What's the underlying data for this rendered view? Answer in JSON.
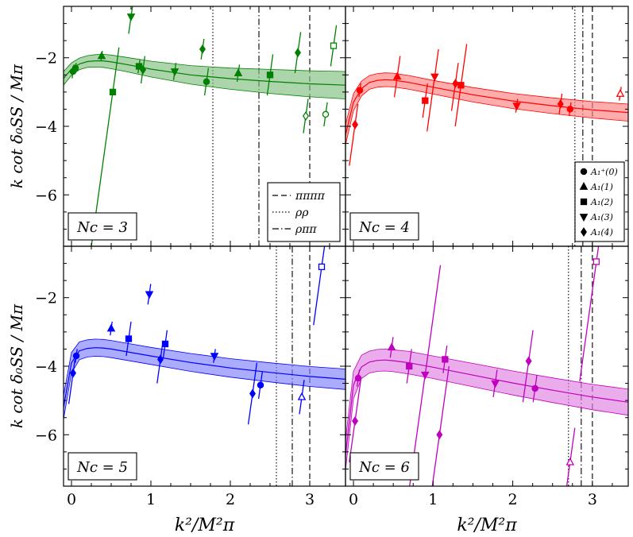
{
  "chart_data": {
    "type": "scatter",
    "figure": "4-panel grid, shared x axis and shared y axis",
    "xlabel": "k²/M²π",
    "ylabel": "k cot δ₀SS / Mπ",
    "xlim": [
      -0.1,
      3.45
    ],
    "ylim": [
      -7.5,
      -0.5
    ],
    "xticks": [
      "0",
      "1",
      "2",
      "3"
    ],
    "yticks": [
      "−2",
      "−4",
      "−6"
    ],
    "legend_lines": [
      {
        "style": "dashed",
        "label": "ππππ"
      },
      {
        "style": "dotted",
        "label": "ρρ"
      },
      {
        "style": "dashdot",
        "label": "ρππ"
      }
    ],
    "legend_markers": [
      {
        "marker": "circle",
        "label": "A₁⁺(0)"
      },
      {
        "marker": "triangle-up",
        "label": "A₁(1)"
      },
      {
        "marker": "square",
        "label": "A₁(2)"
      },
      {
        "marker": "triangle-down",
        "label": "A₁(3)"
      },
      {
        "marker": "diamond",
        "label": "A₁(4)"
      }
    ],
    "panels": [
      {
        "label": "Nc = 3",
        "color": "#008000",
        "band_color": "#7fbf7f",
        "fit": {
          "x": [
            -0.1,
            0,
            0.1,
            0.2,
            0.3,
            0.4,
            0.5,
            0.7,
            1,
            1.5,
            2,
            2.5,
            3,
            3.45
          ],
          "y": [
            -2.6,
            -2.33,
            -2.18,
            -2.11,
            -2.09,
            -2.09,
            -2.12,
            -2.2,
            -2.33,
            -2.5,
            -2.61,
            -2.69,
            -2.76,
            -2.8
          ],
          "err": [
            0.2,
            0.18,
            0.17,
            0.17,
            0.18,
            0.19,
            0.2,
            0.21,
            0.23,
            0.27,
            0.31,
            0.35,
            0.38,
            0.4
          ]
        },
        "thresholds": {
          "rhorho": 1.78,
          "rhopipi": 2.36,
          "pipipipi": 3.0
        },
        "points": [
          {
            "x": 0.02,
            "y": -2.4,
            "marker": "circle",
            "err": [
              0.2,
              0.2
            ],
            "open": false
          },
          {
            "x": 0.05,
            "y": -2.3,
            "marker": "circle",
            "err": [
              0.15,
              0.15
            ],
            "open": false
          },
          {
            "x": 0.38,
            "y": -1.95,
            "marker": "triangle-up",
            "err": [
              0.15,
              0.15
            ],
            "open": false
          },
          {
            "x": 0.52,
            "y": -3.0,
            "marker": "square",
            "err": [
              4.5,
              1.3
            ],
            "open": false
          },
          {
            "x": 0.75,
            "y": -0.8,
            "marker": "triangle-down",
            "err": [
              0.5,
              0.4
            ],
            "open": false
          },
          {
            "x": 0.85,
            "y": -2.25,
            "marker": "square",
            "err": [
              0.2,
              0.2
            ],
            "open": false
          },
          {
            "x": 0.9,
            "y": -2.35,
            "marker": "diamond",
            "err": [
              0.4,
              0.4
            ],
            "open": false
          },
          {
            "x": 1.3,
            "y": -2.4,
            "marker": "triangle-down",
            "err": [
              0.25,
              0.25
            ],
            "open": false
          },
          {
            "x": 1.65,
            "y": -1.75,
            "marker": "diamond",
            "err": [
              0.3,
              0.3
            ],
            "open": false
          },
          {
            "x": 1.7,
            "y": -2.7,
            "marker": "circle",
            "err": [
              0.4,
              0.4
            ],
            "open": false
          },
          {
            "x": 2.1,
            "y": -2.45,
            "marker": "triangle-up",
            "err": [
              0.25,
              0.25
            ],
            "open": false
          },
          {
            "x": 2.5,
            "y": -2.5,
            "marker": "square",
            "err": [
              0.6,
              0.6
            ],
            "open": false
          },
          {
            "x": 2.85,
            "y": -1.85,
            "marker": "diamond",
            "err": [
              0.6,
              0.6
            ],
            "open": false
          },
          {
            "x": 2.95,
            "y": -3.7,
            "marker": "diamond",
            "err": [
              0.5,
              0.5
            ],
            "open": true
          },
          {
            "x": 3.2,
            "y": -3.65,
            "marker": "circle",
            "err": [
              0.35,
              0.35
            ],
            "open": true
          },
          {
            "x": 3.3,
            "y": -1.65,
            "marker": "square",
            "err": [
              0.6,
              0.6
            ],
            "open": true
          }
        ]
      },
      {
        "label": "Nc = 4",
        "color": "#ff0000",
        "band_color": "#ff8080",
        "fit": {
          "x": [
            -0.1,
            0,
            0.1,
            0.2,
            0.3,
            0.4,
            0.5,
            0.7,
            1,
            1.5,
            2,
            2.5,
            3,
            3.45
          ],
          "y": [
            -4.25,
            -3.3,
            -2.9,
            -2.72,
            -2.66,
            -2.64,
            -2.65,
            -2.72,
            -2.86,
            -3.08,
            -3.26,
            -3.4,
            -3.52,
            -3.6
          ],
          "err": [
            0.3,
            0.25,
            0.22,
            0.2,
            0.2,
            0.2,
            0.2,
            0.2,
            0.2,
            0.21,
            0.22,
            0.23,
            0.24,
            0.25
          ]
        },
        "thresholds": {
          "rhorho": 2.78,
          "rhopipi": 2.88,
          "pipipipi": 3.0
        },
        "points": [
          {
            "x": 0.02,
            "y": -3.95,
            "marker": "diamond",
            "err": [
              1.2,
              0.6
            ],
            "open": false
          },
          {
            "x": 0.08,
            "y": -2.95,
            "marker": "circle",
            "err": [
              0.2,
              0.2
            ],
            "open": false
          },
          {
            "x": 0.55,
            "y": -2.55,
            "marker": "triangle-up",
            "err": [
              0.6,
              0.6
            ],
            "open": false
          },
          {
            "x": 0.9,
            "y": -3.25,
            "marker": "square",
            "err": [
              0.5,
              0.5
            ],
            "open": false
          },
          {
            "x": 1.02,
            "y": -2.55,
            "marker": "triangle-down",
            "err": [
              1.6,
              0.8
            ],
            "open": false
          },
          {
            "x": 1.28,
            "y": -2.75,
            "marker": "diamond",
            "err": [
              0.8,
              0.6
            ],
            "open": false
          },
          {
            "x": 1.35,
            "y": -2.8,
            "marker": "square",
            "err": [
              1.2,
              1.2
            ],
            "open": false
          },
          {
            "x": 2.05,
            "y": -3.4,
            "marker": "triangle-down",
            "err": [
              0.2,
              0.2
            ],
            "open": false
          },
          {
            "x": 2.6,
            "y": -3.35,
            "marker": "diamond",
            "err": [
              0.3,
              0.3
            ],
            "open": false
          },
          {
            "x": 2.72,
            "y": -3.5,
            "marker": "circle",
            "err": [
              0.2,
              0.2
            ],
            "open": false
          },
          {
            "x": 3.35,
            "y": -3.05,
            "marker": "triangle-up",
            "err": [
              0.2,
              0.2
            ],
            "open": true
          }
        ]
      },
      {
        "label": "Nc = 5",
        "color": "#0000ff",
        "band_color": "#8080ff",
        "fit": {
          "x": [
            -0.1,
            0,
            0.1,
            0.2,
            0.3,
            0.4,
            0.5,
            0.7,
            1,
            1.5,
            2,
            2.5,
            3,
            3.45
          ],
          "y": [
            -5.2,
            -3.9,
            -3.55,
            -3.48,
            -3.46,
            -3.47,
            -3.5,
            -3.58,
            -3.7,
            -3.89,
            -4.05,
            -4.18,
            -4.3,
            -4.38
          ],
          "err": [
            0.35,
            0.3,
            0.26,
            0.25,
            0.25,
            0.25,
            0.25,
            0.25,
            0.25,
            0.26,
            0.27,
            0.28,
            0.29,
            0.3
          ]
        },
        "thresholds": {
          "rhorho": 2.58,
          "rhopipi": 2.78,
          "pipipipi": 3.0
        },
        "points": [
          {
            "x": 0.02,
            "y": -4.2,
            "marker": "diamond",
            "err": [
              0.9,
              0.4
            ],
            "open": false
          },
          {
            "x": 0.06,
            "y": -3.7,
            "marker": "circle",
            "err": [
              0.2,
              0.2
            ],
            "open": false
          },
          {
            "x": 0.5,
            "y": -2.9,
            "marker": "triangle-up",
            "err": [
              0.2,
              0.2
            ],
            "open": false
          },
          {
            "x": 0.72,
            "y": -3.2,
            "marker": "square",
            "err": [
              0.5,
              0.5
            ],
            "open": false
          },
          {
            "x": 0.98,
            "y": -1.9,
            "marker": "triangle-down",
            "err": [
              0.3,
              0.3
            ],
            "open": false
          },
          {
            "x": 1.12,
            "y": -3.8,
            "marker": "diamond",
            "err": [
              0.7,
              0.5
            ],
            "open": false
          },
          {
            "x": 1.18,
            "y": -3.35,
            "marker": "square",
            "err": [
              0.4,
              0.4
            ],
            "open": false
          },
          {
            "x": 1.8,
            "y": -3.7,
            "marker": "triangle-down",
            "err": [
              0.2,
              0.2
            ],
            "open": false
          },
          {
            "x": 2.28,
            "y": -4.8,
            "marker": "diamond",
            "err": [
              0.9,
              0.9
            ],
            "open": false
          },
          {
            "x": 2.38,
            "y": -4.55,
            "marker": "circle",
            "err": [
              0.4,
              0.4
            ],
            "open": false
          },
          {
            "x": 2.9,
            "y": -4.9,
            "marker": "triangle-up",
            "err": [
              0.5,
              0.5
            ],
            "open": true
          },
          {
            "x": 3.15,
            "y": -1.1,
            "marker": "square",
            "err": [
              1.7,
              1.0
            ],
            "open": true
          }
        ]
      },
      {
        "label": "Nc = 6",
        "color": "#bf00bf",
        "band_color": "#df80df",
        "fit": {
          "x": [
            -0.1,
            0,
            0.1,
            0.2,
            0.3,
            0.4,
            0.5,
            0.7,
            1,
            1.5,
            2,
            2.5,
            3,
            3.45
          ],
          "y": [
            -6.6,
            -4.55,
            -4.02,
            -3.88,
            -3.83,
            -3.82,
            -3.84,
            -3.9,
            -4.03,
            -4.26,
            -4.49,
            -4.7,
            -4.9,
            -5.05
          ],
          "err": [
            0.45,
            0.4,
            0.34,
            0.32,
            0.32,
            0.32,
            0.32,
            0.33,
            0.33,
            0.34,
            0.35,
            0.36,
            0.37,
            0.38
          ]
        },
        "thresholds": {
          "rhorho": 2.7,
          "rhopipi": 2.86,
          "pipipipi": 3.0
        },
        "points": [
          {
            "x": 0.02,
            "y": -5.6,
            "marker": "diamond",
            "err": [
              1.2,
              1.2
            ],
            "open": false
          },
          {
            "x": 0.06,
            "y": -4.35,
            "marker": "circle",
            "err": [
              0.25,
              0.25
            ],
            "open": false
          },
          {
            "x": 0.48,
            "y": -3.45,
            "marker": "triangle-up",
            "err": [
              0.3,
              0.3
            ],
            "open": false
          },
          {
            "x": 0.7,
            "y": -4.0,
            "marker": "square",
            "err": [
              0.5,
              0.5
            ],
            "open": false
          },
          {
            "x": 0.9,
            "y": -4.25,
            "marker": "triangle-down",
            "err": [
              3.5,
              3.2
            ],
            "open": false
          },
          {
            "x": 1.08,
            "y": -6.0,
            "marker": "diamond",
            "err": [
              1.5,
              2.0
            ],
            "open": false
          },
          {
            "x": 1.15,
            "y": -3.8,
            "marker": "square",
            "err": [
              0.4,
              0.4
            ],
            "open": false
          },
          {
            "x": 1.78,
            "y": -4.5,
            "marker": "triangle-down",
            "err": [
              0.4,
              0.4
            ],
            "open": false
          },
          {
            "x": 2.2,
            "y": -3.85,
            "marker": "diamond",
            "err": [
              1.2,
              0.9
            ],
            "open": false
          },
          {
            "x": 2.28,
            "y": -4.65,
            "marker": "circle",
            "err": [
              0.4,
              0.4
            ],
            "open": false
          },
          {
            "x": 2.72,
            "y": -6.8,
            "marker": "triangle-up",
            "err": [
              1.0,
              1.0
            ],
            "open": true
          },
          {
            "x": 3.05,
            "y": -0.95,
            "marker": "square",
            "err": [
              3.5,
              0.5
            ],
            "open": true
          }
        ]
      }
    ]
  }
}
